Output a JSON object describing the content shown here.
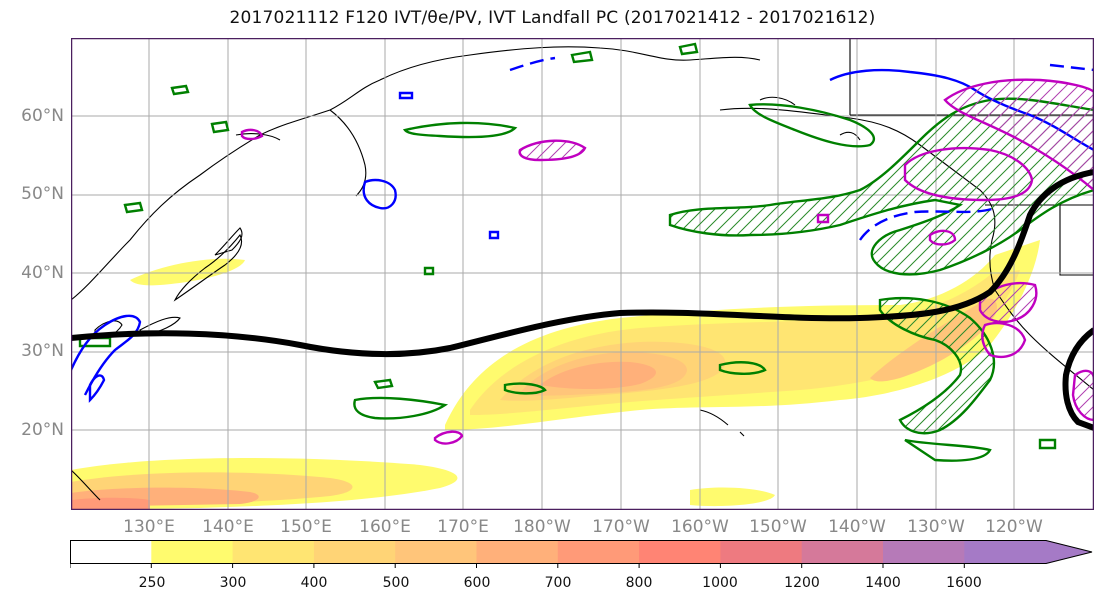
{
  "title": "2017021112 F120 IVT/θe/PV, IVT Landfall PC (2017021412 - 2017021612)",
  "lat_labels": [
    "60°N",
    "50°N",
    "40°N",
    "30°N",
    "20°N"
  ],
  "lon_labels": [
    "130°E",
    "140°E",
    "150°E",
    "160°E",
    "170°E",
    "180°W",
    "170°W",
    "160°W",
    "150°W",
    "140°W",
    "130°W",
    "120°W"
  ],
  "colorbar": {
    "ticks": [
      "250",
      "300",
      "400",
      "500",
      "600",
      "700",
      "800",
      "1000",
      "1200",
      "1400",
      "1600"
    ],
    "colors": [
      "#ffffff",
      "#fffb6e",
      "#ffe572",
      "#ffd476",
      "#ffc57a",
      "#ffb07a",
      "#ff9a78",
      "#ff8474",
      "#ee7a80",
      "#d5799a",
      "#b67ab8",
      "#a57ac6"
    ]
  },
  "colors": {
    "ivt_core": "#f79a78",
    "jet_axis": "#000000",
    "pv_contour": "#008000",
    "theta_e_contour": "#0000ff",
    "pc_contour": "#c000c0",
    "grid": "#aaaaaa",
    "coast": "#000000"
  }
}
